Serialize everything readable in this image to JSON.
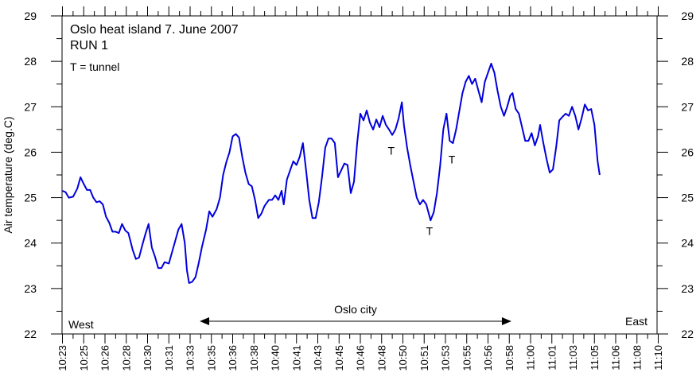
{
  "chart_data": {
    "type": "line",
    "title": "Oslo heat island 7. June 2007",
    "subtitle": "RUN 1",
    "note": "T = tunnel",
    "ylabel": "Air temperature (deg.C)",
    "xlabel": "",
    "ylim": [
      22,
      29
    ],
    "yticks": [
      22,
      23,
      24,
      25,
      26,
      27,
      28,
      29
    ],
    "xtick_labels": [
      "10:23",
      "10:25",
      "10:26",
      "10:28",
      "10:30",
      "10:31",
      "10:33",
      "10:35",
      "10:36",
      "10:38",
      "10:40",
      "10:41",
      "10:43",
      "10:45",
      "10:46",
      "10:48",
      "10:50",
      "10:51",
      "10:53",
      "10:55",
      "10:56",
      "10:58",
      "11:00",
      "11:01",
      "11:03",
      "11:05",
      "11:06",
      "11:08",
      "11:10"
    ],
    "grid": false,
    "color": "#0000dd",
    "series": [
      {
        "values": [
          [
            0,
            25.15
          ],
          [
            0.15,
            25.12
          ],
          [
            0.3,
            25.0
          ],
          [
            0.5,
            25.02
          ],
          [
            0.7,
            25.2
          ],
          [
            0.85,
            25.45
          ],
          [
            1.0,
            25.3
          ],
          [
            1.15,
            25.17
          ],
          [
            1.3,
            25.17
          ],
          [
            1.45,
            25.0
          ],
          [
            1.6,
            24.9
          ],
          [
            1.75,
            24.92
          ],
          [
            1.9,
            24.85
          ],
          [
            2.05,
            24.58
          ],
          [
            2.2,
            24.45
          ],
          [
            2.35,
            24.25
          ],
          [
            2.5,
            24.25
          ],
          [
            2.65,
            24.22
          ],
          [
            2.8,
            24.42
          ],
          [
            2.95,
            24.28
          ],
          [
            3.1,
            24.22
          ],
          [
            3.3,
            23.85
          ],
          [
            3.45,
            23.65
          ],
          [
            3.6,
            23.68
          ],
          [
            3.75,
            23.95
          ],
          [
            3.9,
            24.2
          ],
          [
            4.05,
            24.42
          ],
          [
            4.2,
            23.9
          ],
          [
            4.35,
            23.7
          ],
          [
            4.5,
            23.45
          ],
          [
            4.65,
            23.45
          ],
          [
            4.8,
            23.58
          ],
          [
            5.0,
            23.55
          ],
          [
            5.15,
            23.8
          ],
          [
            5.3,
            24.05
          ],
          [
            5.45,
            24.3
          ],
          [
            5.6,
            24.42
          ],
          [
            5.75,
            24.0
          ],
          [
            5.85,
            23.4
          ],
          [
            5.95,
            23.12
          ],
          [
            6.1,
            23.15
          ],
          [
            6.25,
            23.25
          ],
          [
            6.4,
            23.55
          ],
          [
            6.55,
            23.9
          ],
          [
            6.75,
            24.3
          ],
          [
            6.9,
            24.7
          ],
          [
            7.05,
            24.58
          ],
          [
            7.25,
            24.75
          ],
          [
            7.4,
            25.0
          ],
          [
            7.55,
            25.5
          ],
          [
            7.7,
            25.78
          ],
          [
            7.85,
            26.0
          ],
          [
            8.0,
            26.35
          ],
          [
            8.15,
            26.4
          ],
          [
            8.3,
            26.32
          ],
          [
            8.45,
            25.9
          ],
          [
            8.6,
            25.55
          ],
          [
            8.75,
            25.3
          ],
          [
            8.9,
            25.25
          ],
          [
            9.05,
            24.95
          ],
          [
            9.2,
            24.55
          ],
          [
            9.35,
            24.65
          ],
          [
            9.5,
            24.82
          ],
          [
            9.7,
            24.95
          ],
          [
            9.85,
            24.95
          ],
          [
            10.0,
            25.05
          ],
          [
            10.15,
            24.95
          ],
          [
            10.3,
            25.15
          ],
          [
            10.4,
            24.85
          ],
          [
            10.55,
            25.4
          ],
          [
            10.7,
            25.6
          ],
          [
            10.85,
            25.8
          ],
          [
            11.0,
            25.72
          ],
          [
            11.15,
            25.9
          ],
          [
            11.3,
            26.2
          ],
          [
            11.45,
            25.6
          ],
          [
            11.6,
            24.95
          ],
          [
            11.75,
            24.55
          ],
          [
            11.9,
            24.55
          ],
          [
            12.05,
            24.9
          ],
          [
            12.2,
            25.45
          ],
          [
            12.35,
            26.1
          ],
          [
            12.5,
            26.3
          ],
          [
            12.65,
            26.3
          ],
          [
            12.8,
            26.2
          ],
          [
            12.95,
            25.45
          ],
          [
            13.1,
            25.6
          ],
          [
            13.25,
            25.75
          ],
          [
            13.4,
            25.72
          ],
          [
            13.55,
            25.1
          ],
          [
            13.7,
            25.35
          ],
          [
            13.85,
            26.2
          ],
          [
            14.0,
            26.85
          ],
          [
            14.15,
            26.7
          ],
          [
            14.3,
            26.92
          ],
          [
            14.45,
            26.65
          ],
          [
            14.6,
            26.5
          ],
          [
            14.75,
            26.72
          ],
          [
            14.9,
            26.55
          ],
          [
            15.05,
            26.8
          ],
          [
            15.2,
            26.6
          ],
          [
            15.35,
            26.5
          ],
          [
            15.5,
            26.38
          ],
          [
            15.65,
            26.5
          ],
          [
            15.8,
            26.75
          ],
          [
            15.95,
            27.1
          ],
          [
            16.05,
            26.6
          ],
          [
            16.2,
            26.1
          ],
          [
            16.35,
            25.7
          ],
          [
            16.5,
            25.35
          ],
          [
            16.65,
            25.0
          ],
          [
            16.8,
            24.85
          ],
          [
            16.95,
            24.95
          ],
          [
            17.1,
            24.85
          ],
          [
            17.3,
            24.5
          ],
          [
            17.45,
            24.68
          ],
          [
            17.6,
            25.1
          ],
          [
            17.75,
            25.7
          ],
          [
            17.9,
            26.5
          ],
          [
            18.05,
            26.85
          ],
          [
            18.2,
            26.25
          ],
          [
            18.35,
            26.2
          ],
          [
            18.5,
            26.5
          ],
          [
            18.65,
            26.9
          ],
          [
            18.8,
            27.3
          ],
          [
            18.95,
            27.55
          ],
          [
            19.1,
            27.68
          ],
          [
            19.25,
            27.5
          ],
          [
            19.4,
            27.62
          ],
          [
            19.55,
            27.35
          ],
          [
            19.7,
            27.1
          ],
          [
            19.85,
            27.55
          ],
          [
            20.0,
            27.75
          ],
          [
            20.15,
            27.95
          ],
          [
            20.3,
            27.75
          ],
          [
            20.45,
            27.35
          ],
          [
            20.6,
            27.0
          ],
          [
            20.75,
            26.8
          ],
          [
            20.9,
            27.0
          ],
          [
            21.05,
            27.25
          ],
          [
            21.15,
            27.3
          ],
          [
            21.3,
            26.95
          ],
          [
            21.45,
            26.85
          ],
          [
            21.6,
            26.55
          ],
          [
            21.75,
            26.25
          ],
          [
            21.9,
            26.25
          ],
          [
            22.05,
            26.42
          ],
          [
            22.2,
            26.15
          ],
          [
            22.35,
            26.35
          ],
          [
            22.45,
            26.6
          ],
          [
            22.6,
            26.2
          ],
          [
            22.75,
            25.85
          ],
          [
            22.9,
            25.55
          ],
          [
            23.05,
            25.62
          ],
          [
            23.2,
            26.1
          ],
          [
            23.35,
            26.7
          ],
          [
            23.5,
            26.78
          ],
          [
            23.65,
            26.85
          ],
          [
            23.8,
            26.8
          ],
          [
            23.95,
            27.0
          ],
          [
            24.1,
            26.8
          ],
          [
            24.25,
            26.5
          ],
          [
            24.4,
            26.75
          ],
          [
            24.55,
            27.05
          ],
          [
            24.7,
            26.92
          ],
          [
            24.85,
            26.95
          ],
          [
            25.0,
            26.6
          ],
          [
            25.15,
            25.8
          ],
          [
            25.25,
            25.5
          ]
        ]
      }
    ],
    "annotations": {
      "tunnel_markers": [
        {
          "label": "T",
          "x": 15.45,
          "y": 25.95
        },
        {
          "label": "T",
          "x": 17.25,
          "y": 24.18
        },
        {
          "label": "T",
          "x": 18.3,
          "y": 25.75
        }
      ],
      "west_label": "West",
      "east_label": "East",
      "city_label": "Oslo city",
      "city_span": [
        6.45,
        21.1
      ]
    }
  }
}
